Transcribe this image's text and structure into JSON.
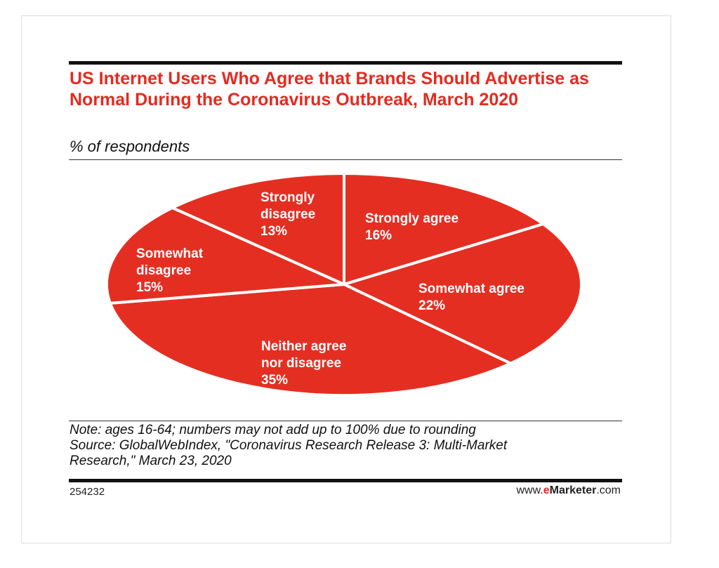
{
  "chart_data": {
    "type": "pie",
    "title": "US Internet Users Who Agree that Brands Should Advertise as Normal During the Coronavirus Outbreak, March 2020",
    "subtitle": "% of respondents",
    "categories": [
      "Strongly agree",
      "Somewhat agree",
      "Neither agree nor disagree",
      "Somewhat disagree",
      "Strongly disagree"
    ],
    "values": [
      16,
      22,
      35,
      15,
      13
    ],
    "value_labels": [
      "16%",
      "22%",
      "35%",
      "15%",
      "13%"
    ],
    "colors": {
      "slice": "#e52e22",
      "title": "#e32b1f",
      "divider": "#ffffff"
    }
  },
  "note": "Note: ages 16-64; numbers may not add up to 100% due to rounding",
  "source_lines": [
    "Source: GlobalWebIndex, \"Coronavirus Research Release 3: Multi-Market",
    "Research,\" March 23, 2020"
  ],
  "chart_id": "254232",
  "brand": {
    "prefix": "www.",
    "e": "e",
    "name": "Marketer",
    "suffix": ".com"
  }
}
